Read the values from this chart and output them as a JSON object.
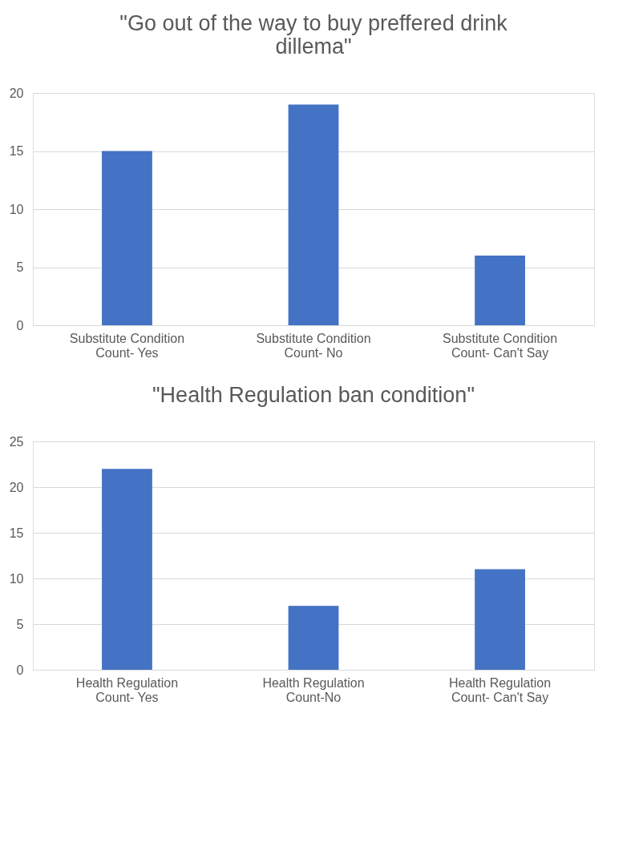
{
  "chart_data": [
    {
      "type": "bar",
      "title": "\"Go out of the way to buy preffered drink dillema\"",
      "categories": [
        "Substitute Condition Count- Yes",
        "Substitute Condition Count- No",
        "Substitute Condition Count- Can't Say"
      ],
      "values": [
        15,
        19,
        6
      ],
      "color": "#4472c4",
      "ylim": [
        0,
        20
      ],
      "yticks": [
        0,
        5,
        10,
        15,
        20
      ],
      "grid": "y"
    },
    {
      "type": "bar",
      "title": "\"Health Regulation ban condition\"",
      "categories": [
        "Health Regulation Count- Yes",
        "Health Regulation Count-No",
        "Health Regulation Count- Can't Say"
      ],
      "values": [
        22,
        7,
        11
      ],
      "color": "#4472c4",
      "ylim": [
        0,
        25
      ],
      "yticks": [
        0,
        5,
        10,
        15,
        20,
        25
      ],
      "grid": "y"
    }
  ]
}
